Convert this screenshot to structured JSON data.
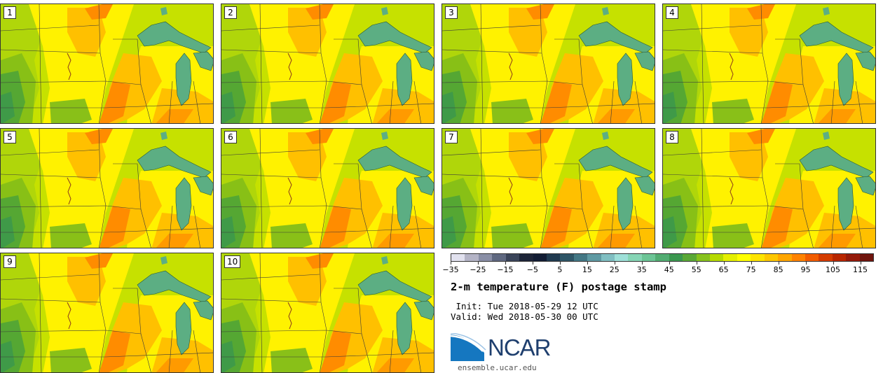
{
  "title": "2-m temperature (F) postage stamp",
  "init": " Init: Tue 2018-05-29 12 UTC",
  "valid": "Valid: Wed 2018-05-30 00 UTC",
  "logo_text": "NCAR",
  "site": "ensemble.ucar.edu",
  "members": [
    "1",
    "2",
    "3",
    "4",
    "5",
    "6",
    "7",
    "8",
    "9",
    "10"
  ],
  "colorbar": {
    "min": -35,
    "max": 120,
    "step": 5,
    "tick_labels": [
      "−35",
      "−25",
      "−15",
      "−5",
      "5",
      "15",
      "25",
      "35",
      "45",
      "55",
      "65",
      "75",
      "85",
      "95",
      "105",
      "115"
    ],
    "tick_values": [
      -35,
      -25,
      -15,
      -5,
      5,
      15,
      25,
      35,
      45,
      55,
      65,
      75,
      85,
      95,
      105,
      115
    ],
    "colors": [
      "#e1e1ee",
      "#b4b4c6",
      "#8a8fa6",
      "#5f6880",
      "#3a4459",
      "#1d2437",
      "#121c33",
      "#203a4f",
      "#2e5566",
      "#437784",
      "#5f9aa3",
      "#80bfc2",
      "#9ee0d8",
      "#86d5b5",
      "#6cc596",
      "#52ad72",
      "#3b974f",
      "#5aa836",
      "#87c21d",
      "#b6da00",
      "#e4ef00",
      "#ffff00",
      "#fde400",
      "#fdc700",
      "#ffa600",
      "#ff8200",
      "#f25c00",
      "#d43c00",
      "#b82600",
      "#951a0a",
      "#6f150d"
    ]
  },
  "colors": {
    "lake": "#5cae83",
    "hot": "#ff8c00",
    "warm": "#ffc300",
    "mild": "#ffff00",
    "cool": "#c4e000",
    "cooler": "#85c014",
    "coolest": "#48a038",
    "ncar_blue": "#1f3f6e",
    "ncar_swoosh": "#1577c0"
  }
}
